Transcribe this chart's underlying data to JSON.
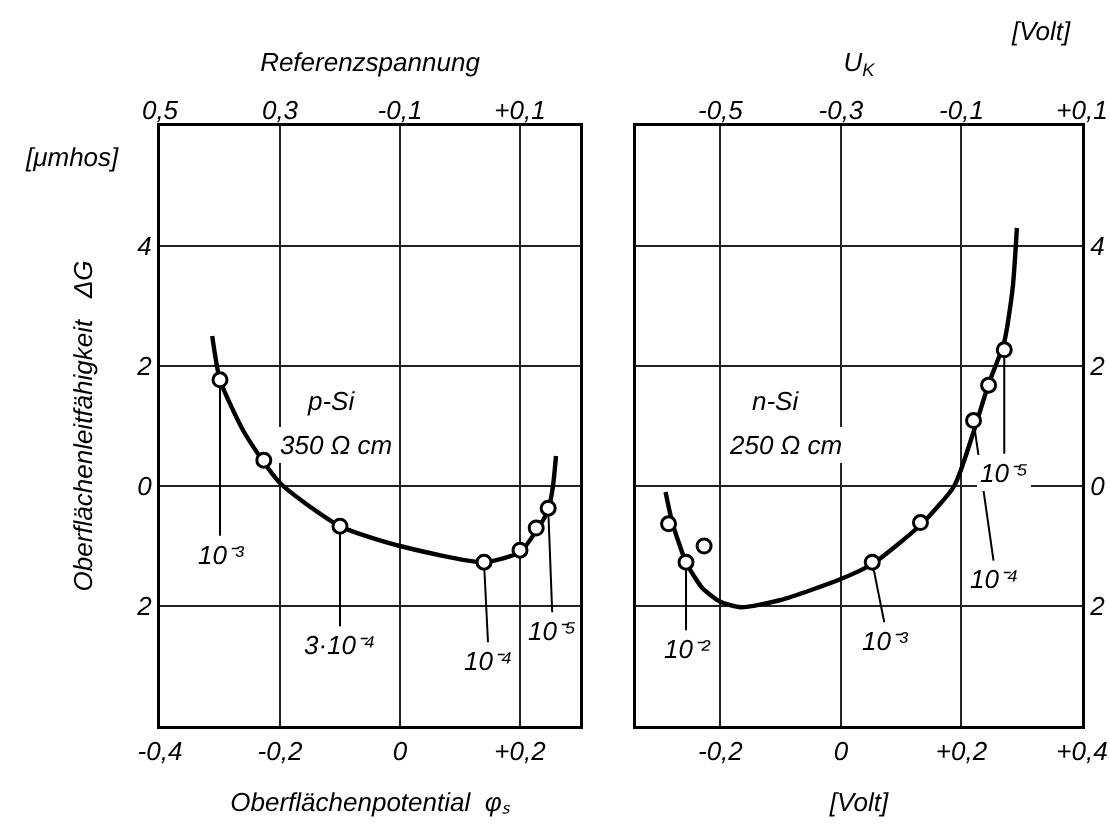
{
  "chart_data": [
    {
      "type": "line",
      "xlabel": "Oberflächenpotential  φₛ",
      "ylabel": "Oberflächenleitfähigkeit   ΔG",
      "x2label": "Referenzspannung",
      "series": [
        {
          "type": "line",
          "color": "#000000",
          "marker": "none",
          "x": [
            -0.313,
            -0.3,
            -0.26,
            -0.2,
            -0.1,
            0,
            0.14,
            0.2,
            0.227,
            0.247,
            0.255,
            0.26
          ],
          "values": [
            2.5,
            1.77,
            0.9,
            0.05,
            -0.67,
            -1.0,
            -1.27,
            -1.1,
            -0.75,
            -0.4,
            0,
            0.5
          ]
        },
        {
          "type": "scatter",
          "color": "#000000",
          "marker": "circle",
          "x": [
            -0.3,
            -0.227,
            -0.1,
            0.14,
            0.2,
            0.227,
            0.247
          ],
          "values": [
            1.77,
            0.43,
            -0.67,
            -1.27,
            -1.07,
            -0.7,
            -0.37
          ]
        }
      ],
      "xlim": [
        -0.4,
        0.3
      ],
      "xticks": [
        {
          "value": -0.4,
          "label": "-0,4"
        },
        {
          "value": -0.2,
          "label": "-0,2"
        },
        0,
        {
          "value": 0.2,
          "label": "+0,2"
        }
      ],
      "x2lim": [
        -0.5,
        0.2
      ],
      "x2ticks": [
        {
          "value": -0.5,
          "label": "0,5"
        },
        {
          "value": -0.3,
          "label": "0,3"
        },
        {
          "value": -0.1,
          "label": "-0,1"
        },
        {
          "value": 0.1,
          "label": "+0,1"
        }
      ],
      "ylim": [
        -4,
        6
      ],
      "yticks": [
        {
          "value": -2,
          "label": "2"
        },
        0,
        2,
        4
      ],
      "grid": true,
      "annotations": [
        "p-Si",
        "350 Ω cm",
        "[μmhos]",
        {
          "text": "10⁻³",
          "x": -0.3,
          "y": 1.77
        },
        {
          "text": "3·10⁻⁴",
          "x": -0.1,
          "y": -0.67
        },
        {
          "text": "10⁻⁴",
          "x": 0.14,
          "y": -1.27
        },
        {
          "text": "10⁻⁵",
          "x": 0.247,
          "y": -0.37
        }
      ]
    },
    {
      "type": "line",
      "xlabel": "[Volt]",
      "x2label": "U$_{K}$",
      "series": [
        {
          "type": "line",
          "color": "#000000",
          "marker": "none",
          "x": [
            -0.291,
            -0.28,
            -0.257,
            -0.23,
            -0.2,
            -0.166,
            -0.1,
            0,
            0.052,
            0.132,
            0.188,
            0.22,
            0.245,
            0.271,
            0.285,
            0.292
          ],
          "values": [
            -0.1,
            -0.6,
            -1.27,
            -1.7,
            -1.93,
            -2.02,
            -1.9,
            -1.55,
            -1.3,
            -0.65,
            0,
            0.9,
            1.7,
            2.4,
            3.3,
            4.3
          ]
        },
        {
          "type": "scatter",
          "color": "#000000",
          "marker": "circle",
          "x": [
            -0.286,
            -0.257,
            -0.227,
            0.052,
            0.132,
            0.22,
            0.245,
            0.271
          ],
          "values": [
            -0.63,
            -1.27,
            -1.0,
            -1.27,
            -0.61,
            1.09,
            1.68,
            2.27
          ]
        }
      ],
      "xlim": [
        -0.34,
        0.4
      ],
      "xticks": [
        {
          "value": -0.2,
          "label": "-0,2"
        },
        0,
        {
          "value": 0.2,
          "label": "+0,2"
        },
        {
          "value": 0.4,
          "label": "+0,4"
        }
      ],
      "x2lim": [
        -0.64,
        0.1
      ],
      "x2ticks": [
        {
          "value": -0.5,
          "label": "-0,5"
        },
        {
          "value": -0.3,
          "label": "-0,3"
        },
        {
          "value": -0.1,
          "label": "-0,1"
        },
        {
          "value": 0.1,
          "label": "+0,1"
        }
      ],
      "ylim": [
        -4,
        6
      ],
      "yticks": [
        {
          "value": -2,
          "label": "2"
        },
        0,
        2,
        4
      ],
      "grid": true,
      "annotations": [
        "n-Si",
        "250 Ω cm",
        "[Volt]",
        {
          "text": "10⁻²",
          "x": -0.257,
          "y": -1.27
        },
        {
          "text": "10⁻³",
          "x": 0.052,
          "y": -1.27
        },
        {
          "text": "10⁻⁴",
          "x": 0.22,
          "y": 1.09
        },
        {
          "text": "10⁻⁵",
          "x": 0.271,
          "y": 2.27
        }
      ]
    }
  ]
}
